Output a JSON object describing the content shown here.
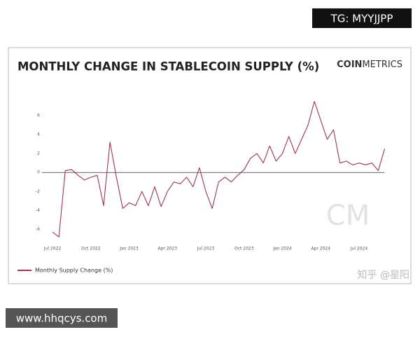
{
  "watermark_top": "TG: MYYJJPP",
  "watermark_bottom": "www.hhqcys.com",
  "watermark_corner": "知乎 @星阳",
  "chart_data": {
    "type": "line",
    "title": "MONTHLY CHANGE IN STABLECOIN SUPPLY (%)",
    "brand_bold": "COIN",
    "brand_light": "METRICS",
    "logo": "CM",
    "categories": [
      "Jul 2022",
      null,
      null,
      null,
      null,
      null,
      "Oct 2022",
      null,
      null,
      null,
      null,
      null,
      "Jan 2023",
      null,
      null,
      null,
      null,
      null,
      "Apr 2023",
      null,
      null,
      null,
      null,
      null,
      "Jul 2023",
      null,
      null,
      null,
      null,
      null,
      "Oct 2023",
      null,
      null,
      null,
      null,
      null,
      "Jan 2024",
      null,
      null,
      null,
      null,
      null,
      "Apr 2024",
      null,
      null,
      null,
      null,
      null,
      "Jul 2024",
      null,
      null,
      null,
      null
    ],
    "series": [
      {
        "name": "Monthly Supply Change (%)",
        "color": "#a0364b",
        "values": [
          -6.3,
          -6.8,
          0.2,
          0.3,
          -0.3,
          -0.8,
          -0.5,
          -0.3,
          -3.5,
          3.2,
          -0.5,
          -3.8,
          -3.2,
          -3.5,
          -2.0,
          -3.5,
          -1.5,
          -3.6,
          -2.0,
          -1.0,
          -1.2,
          -0.5,
          -1.5,
          0.5,
          -2.0,
          -3.8,
          -1.0,
          -0.5,
          -1.0,
          -0.3,
          0.3,
          1.5,
          2.0,
          1.0,
          2.8,
          1.2,
          2.0,
          3.8,
          2.0,
          3.5,
          5.0,
          7.5,
          5.5,
          3.5,
          4.5,
          1.0,
          1.2,
          0.8,
          1.0,
          0.8,
          1.0,
          0.2,
          2.5
        ]
      }
    ],
    "ylim": [
      -7.3,
      8
    ],
    "yticks": [
      -6,
      -4,
      -2,
      0,
      2,
      4,
      6
    ],
    "grid": false,
    "legend": "bottom-left"
  }
}
